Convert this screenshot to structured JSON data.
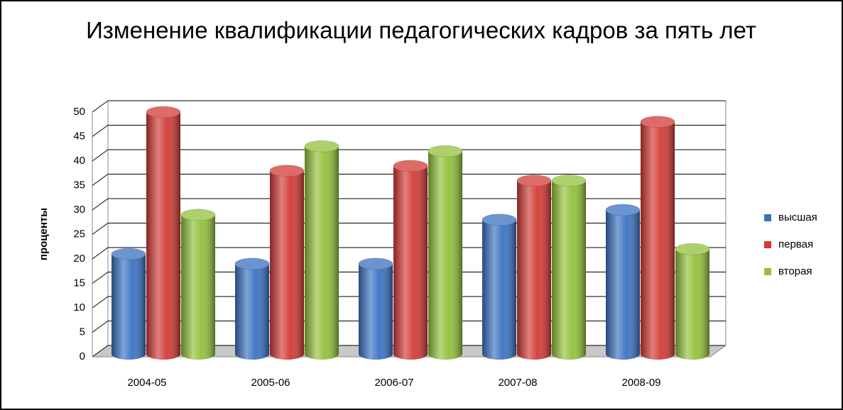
{
  "chart_data": {
    "type": "bar3d",
    "title": "Изменение квалификации педагогических кадров за пять лет",
    "y_label": "проценты",
    "categories": [
      "2004-05",
      "2005-06",
      "2006-07",
      "2007-08",
      "2008-09"
    ],
    "series": [
      {
        "name": "высшая",
        "color": "#3a72c2",
        "values": [
          21,
          19,
          19,
          28,
          30
        ]
      },
      {
        "name": "первая",
        "color": "#d23a35",
        "values": [
          50,
          38,
          39,
          36,
          48
        ]
      },
      {
        "name": "вторая",
        "color": "#92c13a",
        "values": [
          29,
          43,
          42,
          36,
          22
        ]
      }
    ],
    "ylim": [
      0,
      50
    ],
    "yticks": [
      0,
      5,
      10,
      15,
      20,
      25,
      30,
      35,
      40,
      45,
      50
    ],
    "grid": true,
    "legend": "right"
  }
}
